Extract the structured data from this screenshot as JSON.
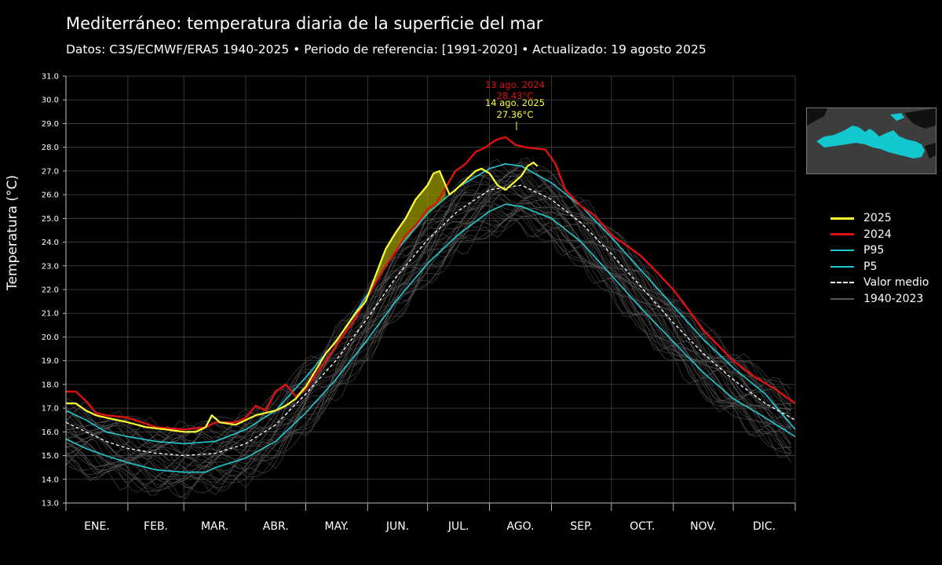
{
  "title": "Mediterráneo: temperatura diaria de la superficie del mar",
  "subtitle": "Datos: C3S/ECMWF/ERA5 1940-2025   •   Periodo de referencia: [1991-2020]  •  Actualizado: 19 agosto 2025",
  "colors": {
    "background": "#000000",
    "y2025": "#ffff33",
    "y2024": "#dd1111",
    "percentile": "#22c8d0",
    "mean": "#ffffff",
    "history": "#5a5a5a",
    "fill_above_p95": "#9a9a00",
    "map_sea": "#13c7cf"
  },
  "icons": {
    "minimap": "mediterranean-map-icon"
  },
  "chart_data": {
    "type": "line",
    "ylabel": "Temperatura (°C)",
    "xlabel": "",
    "ylim": [
      13.0,
      31.0
    ],
    "xlim": [
      0,
      365
    ],
    "grid": true,
    "yticks": [
      "13.0",
      "14.0",
      "15.0",
      "16.0",
      "17.0",
      "18.0",
      "19.0",
      "20.0",
      "21.0",
      "22.0",
      "23.0",
      "24.0",
      "25.0",
      "26.0",
      "27.0",
      "28.0",
      "29.0",
      "30.0",
      "31.0"
    ],
    "months": [
      "ENE.",
      "FEB.",
      "MAR.",
      "ABR.",
      "MAY.",
      "JUN.",
      "JUL.",
      "AGO.",
      "SEP.",
      "OCT.",
      "NOV.",
      "DIC."
    ],
    "month_starts": [
      0,
      31,
      59,
      90,
      120,
      151,
      181,
      212,
      243,
      273,
      304,
      334,
      365
    ],
    "legend_position": "right",
    "legend": [
      {
        "label": "2025",
        "style": "y2025"
      },
      {
        "label": "2024",
        "style": "y2024"
      },
      {
        "label": "P95",
        "style": "percentile"
      },
      {
        "label": "P5",
        "style": "percentile"
      },
      {
        "label": "Valor medio",
        "style": "mean"
      },
      {
        "label": "1940-2023",
        "style": "history"
      }
    ],
    "annotations": [
      {
        "date": "13 ago. 2024",
        "value": "28.43°C",
        "color": "y2024"
      },
      {
        "date": "14 ago. 2025",
        "value": "27.36°C",
        "color": "y2025"
      }
    ],
    "series": [
      {
        "name": "Valor medio",
        "points": [
          [
            0,
            16.4
          ],
          [
            10,
            16.0
          ],
          [
            20,
            15.6
          ],
          [
            31,
            15.3
          ],
          [
            45,
            15.1
          ],
          [
            59,
            15.0
          ],
          [
            75,
            15.1
          ],
          [
            90,
            15.5
          ],
          [
            105,
            16.3
          ],
          [
            120,
            17.6
          ],
          [
            135,
            19.0
          ],
          [
            151,
            20.8
          ],
          [
            165,
            22.5
          ],
          [
            181,
            24.1
          ],
          [
            196,
            25.3
          ],
          [
            212,
            26.2
          ],
          [
            228,
            26.4
          ],
          [
            243,
            25.8
          ],
          [
            258,
            24.8
          ],
          [
            273,
            23.5
          ],
          [
            288,
            22.1
          ],
          [
            304,
            20.6
          ],
          [
            319,
            19.3
          ],
          [
            334,
            18.2
          ],
          [
            350,
            17.2
          ],
          [
            365,
            16.5
          ]
        ]
      },
      {
        "name": "P95",
        "points": [
          [
            0,
            16.9
          ],
          [
            10,
            16.5
          ],
          [
            20,
            16.0
          ],
          [
            31,
            15.8
          ],
          [
            45,
            15.6
          ],
          [
            59,
            15.5
          ],
          [
            75,
            15.6
          ],
          [
            90,
            16.1
          ],
          [
            105,
            16.9
          ],
          [
            120,
            18.3
          ],
          [
            135,
            19.8
          ],
          [
            151,
            21.8
          ],
          [
            165,
            23.6
          ],
          [
            181,
            25.2
          ],
          [
            196,
            26.3
          ],
          [
            212,
            27.1
          ],
          [
            220,
            27.3
          ],
          [
            228,
            27.2
          ],
          [
            243,
            26.5
          ],
          [
            258,
            25.5
          ],
          [
            273,
            24.2
          ],
          [
            288,
            22.8
          ],
          [
            304,
            21.3
          ],
          [
            319,
            19.9
          ],
          [
            334,
            18.7
          ],
          [
            350,
            17.6
          ],
          [
            365,
            16.1
          ]
        ]
      },
      {
        "name": "P5",
        "points": [
          [
            0,
            15.7
          ],
          [
            10,
            15.3
          ],
          [
            20,
            15.0
          ],
          [
            31,
            14.7
          ],
          [
            45,
            14.4
          ],
          [
            59,
            14.3
          ],
          [
            70,
            14.3
          ],
          [
            75,
            14.5
          ],
          [
            90,
            14.9
          ],
          [
            105,
            15.6
          ],
          [
            120,
            16.8
          ],
          [
            135,
            18.2
          ],
          [
            151,
            19.9
          ],
          [
            165,
            21.5
          ],
          [
            181,
            23.1
          ],
          [
            196,
            24.3
          ],
          [
            212,
            25.3
          ],
          [
            220,
            25.6
          ],
          [
            228,
            25.5
          ],
          [
            243,
            25.0
          ],
          [
            258,
            24.0
          ],
          [
            273,
            22.6
          ],
          [
            288,
            21.2
          ],
          [
            304,
            19.8
          ],
          [
            319,
            18.5
          ],
          [
            334,
            17.4
          ],
          [
            350,
            16.6
          ],
          [
            365,
            15.8
          ]
        ]
      },
      {
        "name": "2024",
        "points": [
          [
            0,
            17.7
          ],
          [
            5,
            17.7
          ],
          [
            10,
            17.3
          ],
          [
            15,
            16.8
          ],
          [
            20,
            16.7
          ],
          [
            31,
            16.6
          ],
          [
            45,
            16.2
          ],
          [
            59,
            16.1
          ],
          [
            70,
            16.2
          ],
          [
            75,
            16.4
          ],
          [
            85,
            16.4
          ],
          [
            90,
            16.6
          ],
          [
            95,
            17.1
          ],
          [
            100,
            16.9
          ],
          [
            105,
            17.7
          ],
          [
            110,
            18.0
          ],
          [
            115,
            17.5
          ],
          [
            120,
            17.8
          ],
          [
            125,
            18.4
          ],
          [
            135,
            19.6
          ],
          [
            145,
            20.8
          ],
          [
            151,
            21.7
          ],
          [
            160,
            23.0
          ],
          [
            165,
            23.6
          ],
          [
            170,
            24.3
          ],
          [
            175,
            24.7
          ],
          [
            181,
            25.4
          ],
          [
            185,
            25.6
          ],
          [
            190,
            26.3
          ],
          [
            195,
            27.0
          ],
          [
            200,
            27.3
          ],
          [
            205,
            27.8
          ],
          [
            210,
            28.0
          ],
          [
            215,
            28.3
          ],
          [
            220,
            28.43
          ],
          [
            225,
            28.1
          ],
          [
            230,
            28.0
          ],
          [
            240,
            27.9
          ],
          [
            245,
            27.3
          ],
          [
            250,
            26.2
          ],
          [
            258,
            25.5
          ],
          [
            265,
            25.1
          ],
          [
            273,
            24.3
          ],
          [
            280,
            23.9
          ],
          [
            288,
            23.4
          ],
          [
            295,
            22.8
          ],
          [
            304,
            22.0
          ],
          [
            312,
            21.1
          ],
          [
            319,
            20.3
          ],
          [
            327,
            19.6
          ],
          [
            334,
            19.0
          ],
          [
            345,
            18.3
          ],
          [
            355,
            17.8
          ],
          [
            365,
            17.2
          ]
        ]
      },
      {
        "name": "2025",
        "points": [
          [
            0,
            17.2
          ],
          [
            5,
            17.2
          ],
          [
            10,
            16.9
          ],
          [
            15,
            16.7
          ],
          [
            20,
            16.6
          ],
          [
            31,
            16.4
          ],
          [
            40,
            16.2
          ],
          [
            50,
            16.1
          ],
          [
            59,
            16.0
          ],
          [
            65,
            16.0
          ],
          [
            70,
            16.2
          ],
          [
            73,
            16.7
          ],
          [
            77,
            16.4
          ],
          [
            85,
            16.3
          ],
          [
            90,
            16.5
          ],
          [
            95,
            16.7
          ],
          [
            100,
            16.8
          ],
          [
            105,
            16.9
          ],
          [
            110,
            17.1
          ],
          [
            115,
            17.4
          ],
          [
            120,
            17.9
          ],
          [
            125,
            18.6
          ],
          [
            130,
            19.3
          ],
          [
            135,
            19.8
          ],
          [
            140,
            20.4
          ],
          [
            145,
            21.0
          ],
          [
            150,
            21.5
          ],
          [
            155,
            22.6
          ],
          [
            160,
            23.7
          ],
          [
            165,
            24.4
          ],
          [
            170,
            25.0
          ],
          [
            175,
            25.8
          ],
          [
            181,
            26.4
          ],
          [
            184,
            26.9
          ],
          [
            187,
            27.0
          ],
          [
            190,
            26.4
          ],
          [
            192,
            26.0
          ],
          [
            195,
            26.2
          ],
          [
            200,
            26.6
          ],
          [
            205,
            27.0
          ],
          [
            208,
            27.1
          ],
          [
            212,
            26.9
          ],
          [
            216,
            26.4
          ],
          [
            220,
            26.2
          ],
          [
            224,
            26.5
          ],
          [
            228,
            26.8
          ],
          [
            231,
            27.2
          ],
          [
            234,
            27.36
          ],
          [
            236,
            27.2
          ]
        ]
      },
      {
        "name": "1940-2023",
        "points": [
          [
            0,
            15.8
          ],
          [
            15,
            15.4
          ],
          [
            31,
            15.0
          ],
          [
            45,
            14.8
          ],
          [
            59,
            14.7
          ],
          [
            75,
            14.9
          ],
          [
            90,
            15.2
          ],
          [
            105,
            16.0
          ],
          [
            120,
            17.3
          ],
          [
            135,
            18.7
          ],
          [
            151,
            20.4
          ],
          [
            165,
            22.1
          ],
          [
            181,
            23.6
          ],
          [
            196,
            24.8
          ],
          [
            212,
            25.7
          ],
          [
            228,
            25.9
          ],
          [
            243,
            25.3
          ],
          [
            258,
            24.3
          ],
          [
            273,
            23.0
          ],
          [
            288,
            21.6
          ],
          [
            304,
            20.2
          ],
          [
            319,
            18.9
          ],
          [
            334,
            17.9
          ],
          [
            350,
            16.9
          ],
          [
            365,
            16.0
          ]
        ]
      }
    ]
  }
}
